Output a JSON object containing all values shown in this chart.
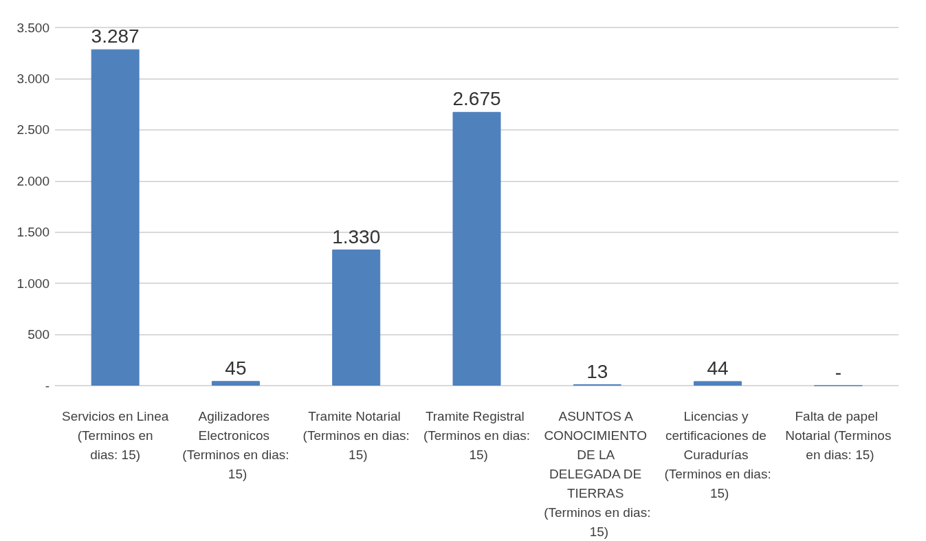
{
  "chart_data": {
    "type": "bar",
    "categories": [
      "Servicios en Linea (Terminos en dias: 15)",
      "Agilizadores Electronicos (Terminos en dias: 15)",
      "Tramite Notarial (Terminos en dias: 15)",
      "Tramite Registral (Terminos en dias: 15)",
      "ASUNTOS A CONOCIMIENTO DE LA DELEGADA DE TIERRAS (Terminos en dias: 15)",
      "Licencias y certificaciones de Curadurías (Terminos en dias: 15)",
      "Falta de papel Notarial (Terminos en dias: 15)"
    ],
    "values": [
      3287,
      45,
      1330,
      2675,
      13,
      44,
      0
    ],
    "value_labels": [
      "3.287",
      "45",
      "1.330",
      "2.675",
      "13",
      "44",
      "-"
    ],
    "color": "#4f81bd",
    "ylim": [
      0,
      3500
    ],
    "yticks": [
      {
        "value": 0,
        "label": "-"
      },
      {
        "value": 500,
        "label": "500"
      },
      {
        "value": 1000,
        "label": "1.000"
      },
      {
        "value": 1500,
        "label": "1.500"
      },
      {
        "value": 2000,
        "label": "2.000"
      },
      {
        "value": 2500,
        "label": "2.500"
      },
      {
        "value": 3000,
        "label": "3.000"
      },
      {
        "value": 3500,
        "label": "3.500"
      }
    ],
    "grid": "y"
  }
}
